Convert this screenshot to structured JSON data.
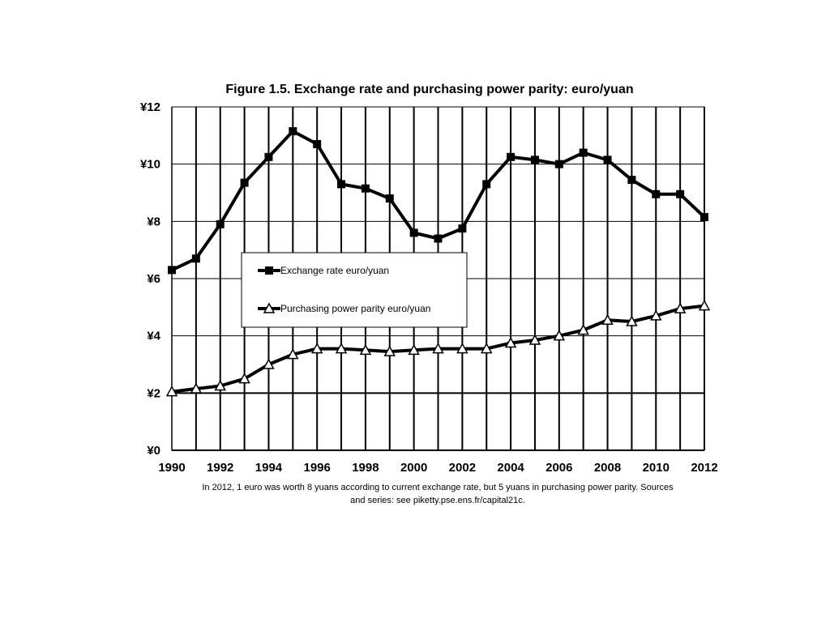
{
  "chart_data": {
    "type": "line",
    "title": "Figure 1.5. Exchange rate and purchasing power parity: euro/yuan",
    "caption": "In 2012, 1 euro was worth 8 yuans according to current exchange rate, but 5 yuans in purchasing power parity. Sources and series: see piketty.pse.ens.fr/capital21c.",
    "x": [
      1990,
      1991,
      1992,
      1993,
      1994,
      1995,
      1996,
      1997,
      1998,
      1999,
      2000,
      2001,
      2002,
      2003,
      2004,
      2005,
      2006,
      2007,
      2008,
      2009,
      2010,
      2011,
      2012
    ],
    "x_tick_labels": [
      "1990",
      "1992",
      "1994",
      "1996",
      "1998",
      "2000",
      "2002",
      "2004",
      "2006",
      "2008",
      "2010",
      "2012"
    ],
    "y_tick_labels": [
      "¥0",
      "¥2",
      "¥4",
      "¥6",
      "¥8",
      "¥10",
      "¥12"
    ],
    "xlim": [
      1990,
      2012
    ],
    "ylim": [
      0,
      12
    ],
    "grid": true,
    "legend_position": "center-left",
    "series": [
      {
        "name": "Exchange rate euro/yuan",
        "marker": "square",
        "values": [
          6.3,
          6.7,
          7.9,
          9.35,
          10.25,
          11.15,
          10.7,
          9.3,
          9.15,
          8.8,
          7.6,
          7.4,
          7.75,
          9.3,
          10.25,
          10.15,
          10.0,
          10.4,
          10.15,
          9.45,
          8.95,
          8.95,
          8.15
        ]
      },
      {
        "name": "Purchasing power parity euro/yuan",
        "marker": "triangle",
        "values": [
          2.05,
          2.15,
          2.25,
          2.5,
          3.0,
          3.35,
          3.55,
          3.55,
          3.5,
          3.45,
          3.5,
          3.55,
          3.55,
          3.55,
          3.75,
          3.85,
          4.0,
          4.2,
          4.55,
          4.5,
          4.7,
          4.95,
          5.05
        ]
      }
    ]
  }
}
